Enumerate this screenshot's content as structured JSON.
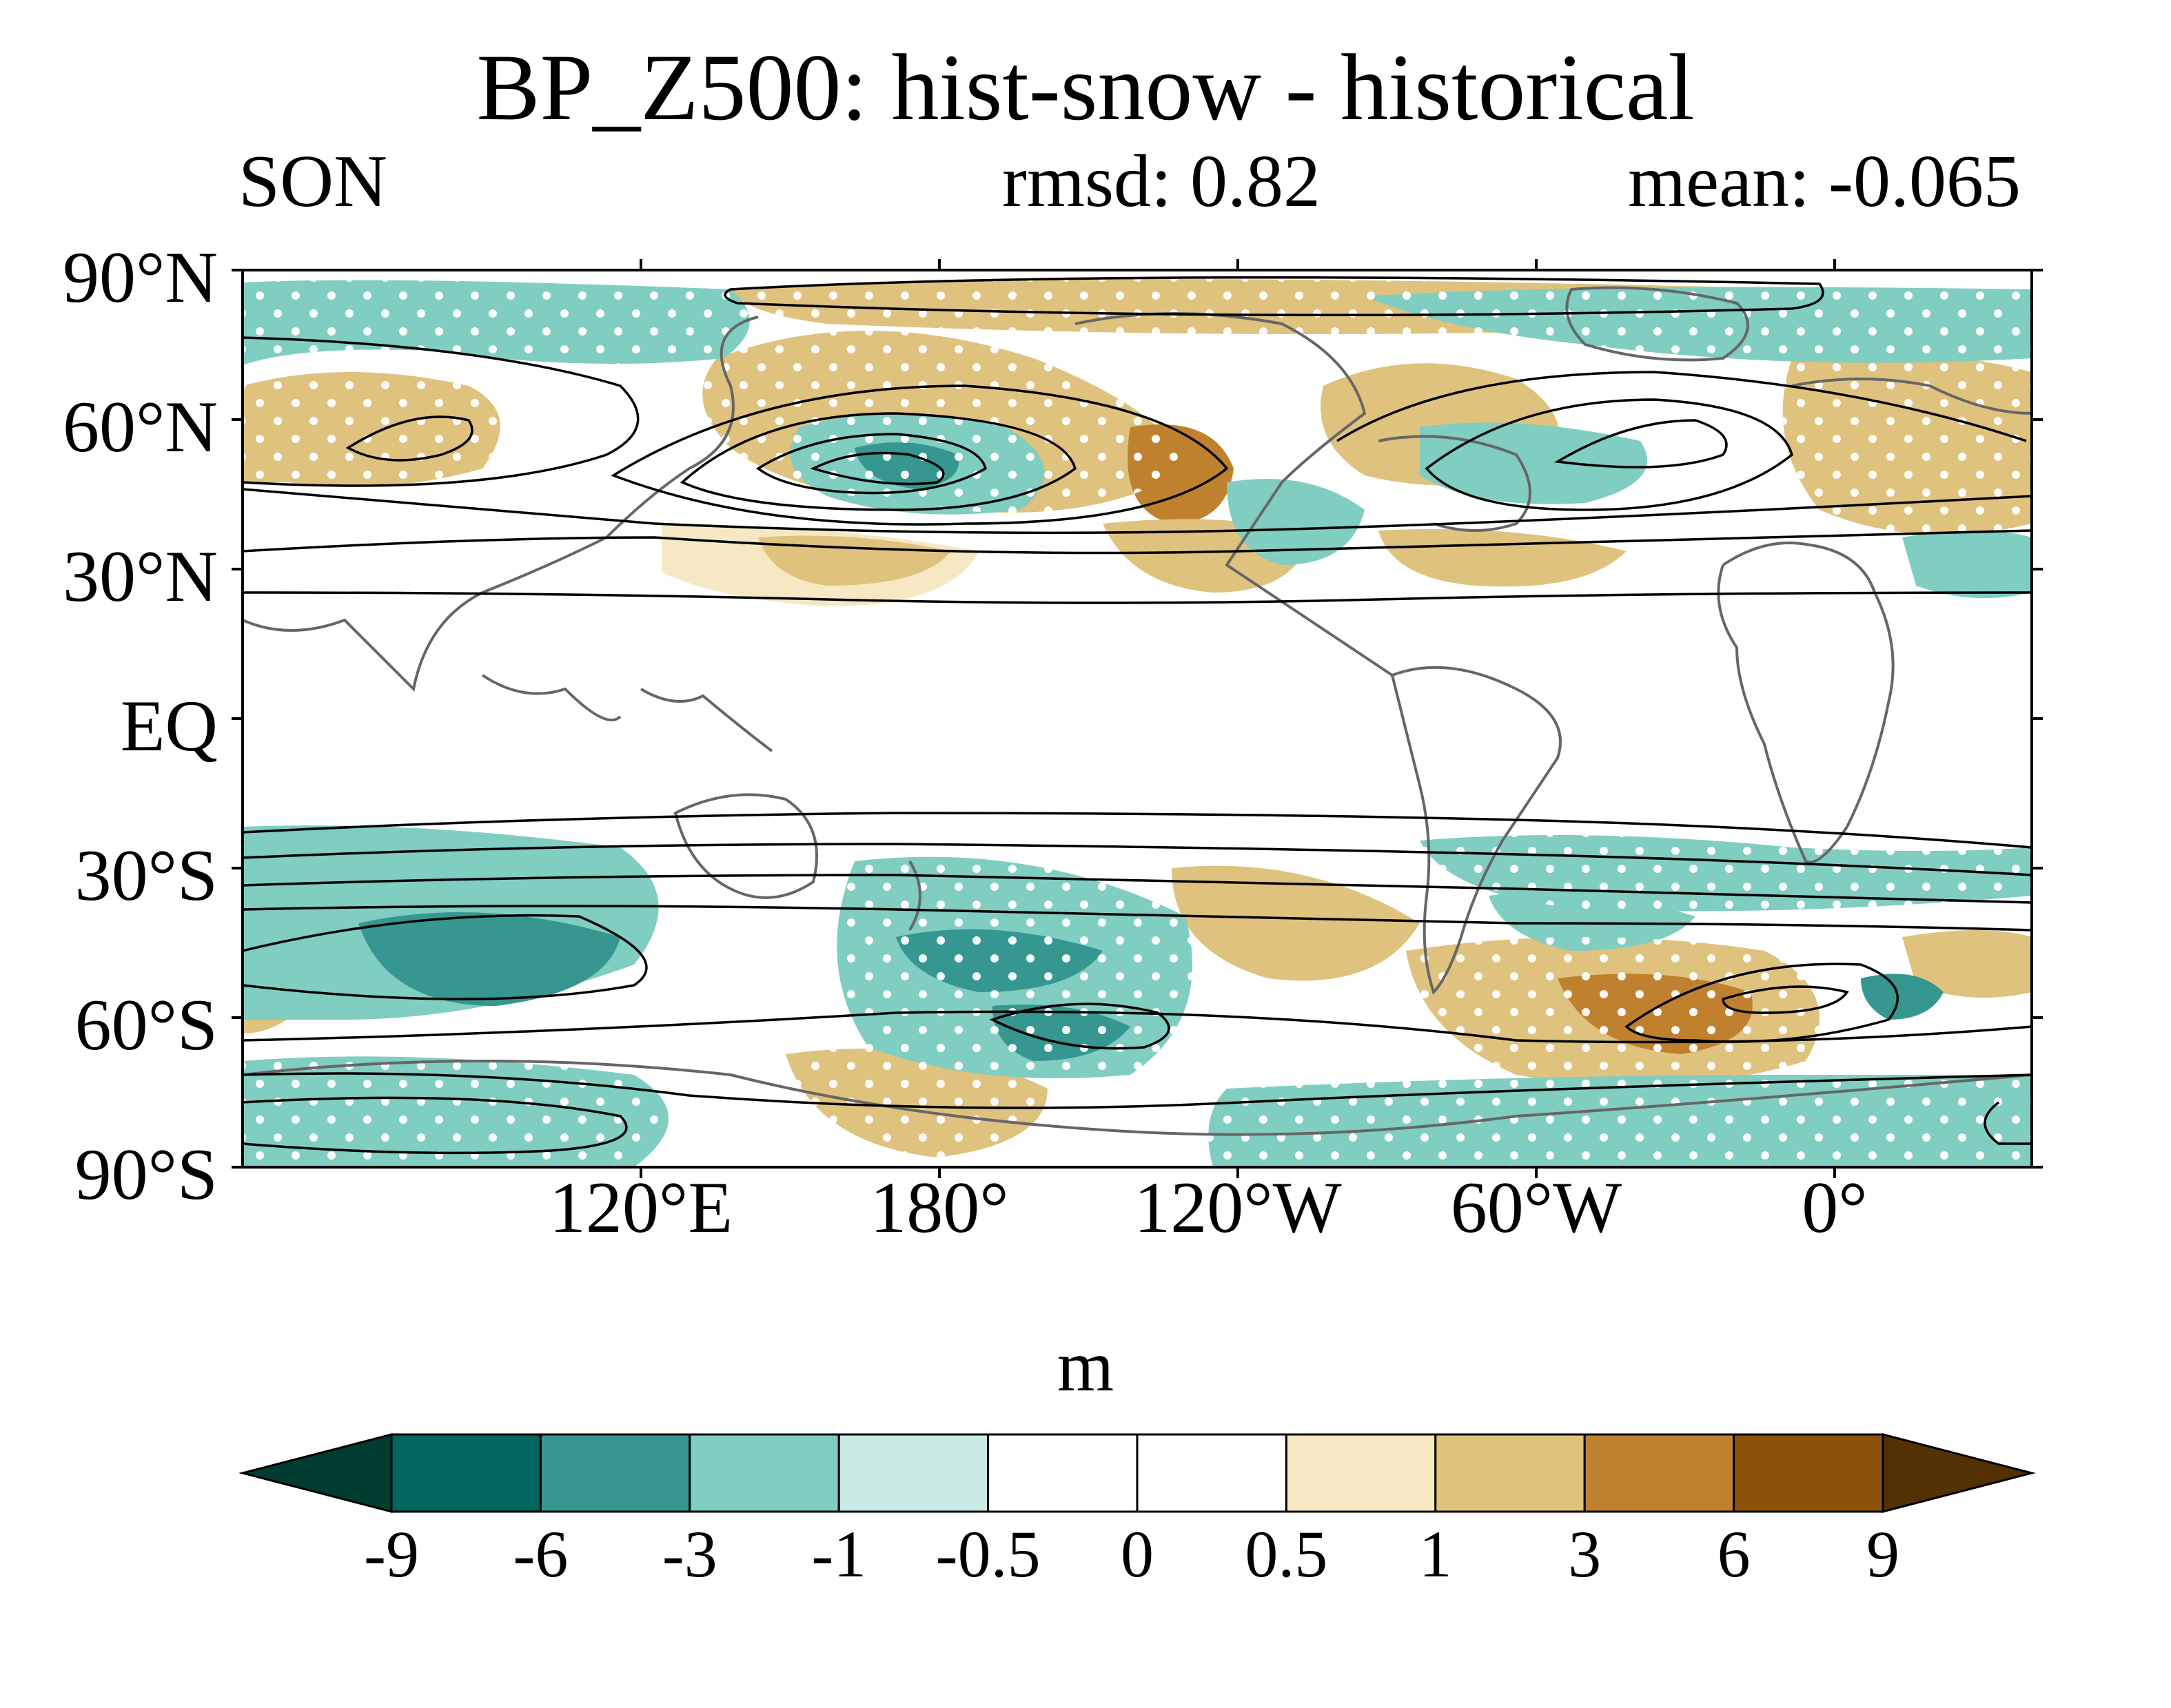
{
  "title": "BP_Z500: hist-snow - historical",
  "season": "SON",
  "rmsd_text": "rmsd: 0.82",
  "mean_text": "mean: -0.065",
  "units": "m",
  "lat_labels": [
    "90°N",
    "60°N",
    "30°N",
    "EQ",
    "30°S",
    "60°S",
    "90°S"
  ],
  "lon_labels": [
    "120°E",
    "180°",
    "120°W",
    "60°W",
    "0°"
  ],
  "colorbar": {
    "labels": [
      "-9",
      "-6",
      "-3",
      "-1",
      "-0.5",
      "0",
      "0.5",
      "1",
      "3",
      "6",
      "9"
    ],
    "colors": [
      "#003c30",
      "#01665e",
      "#35978f",
      "#80cdc1",
      "#c7eae5",
      "#ffffff",
      "#ffffff",
      "#f6e8c3",
      "#dfc27d",
      "#bf812d",
      "#8c510a",
      "#543005"
    ]
  },
  "map": {
    "lon_range": [
      40,
      400
    ],
    "lat_range": [
      -90,
      90
    ],
    "stippling": "white dots mark significant differences",
    "contours": "black lines show climatological Z500"
  }
}
